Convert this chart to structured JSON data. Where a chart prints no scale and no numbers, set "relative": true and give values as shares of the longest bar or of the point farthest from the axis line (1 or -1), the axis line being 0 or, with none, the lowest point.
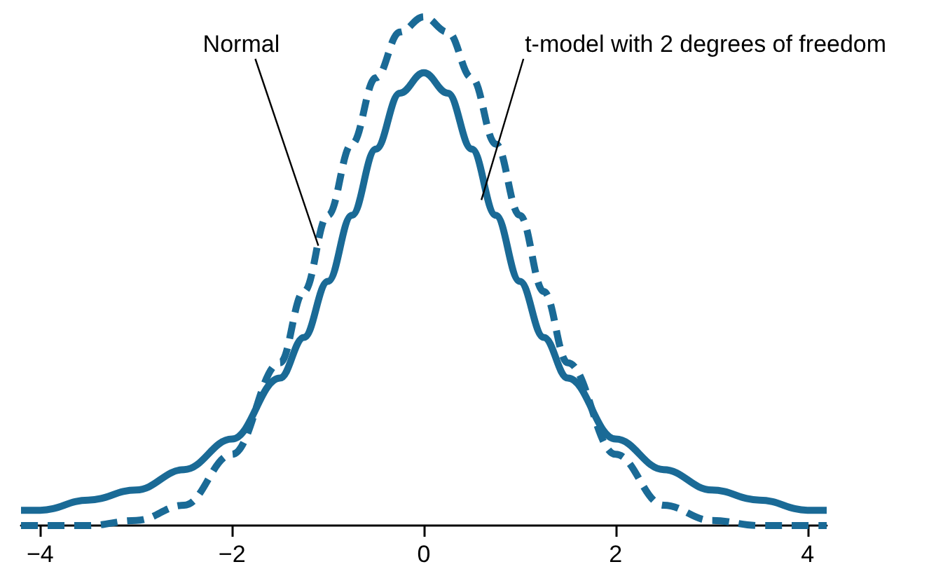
{
  "chart_data": {
    "type": "line",
    "relative": true,
    "x": [
      -4.2,
      -4,
      -3.5,
      -3,
      -2.5,
      -2,
      -1.5,
      -1.25,
      -1,
      -0.75,
      -0.5,
      -0.25,
      0,
      0.25,
      0.5,
      0.75,
      1,
      1.25,
      1.5,
      2,
      2.5,
      3,
      3.5,
      4,
      4.2
    ],
    "series": [
      {
        "color": "#1a6a96",
        "line_style": "dashed",
        "values": [
          0,
          0,
          0,
          0.01,
          0.04,
          0.14,
          0.32,
          0.46,
          0.61,
          0.75,
          0.88,
          0.97,
          1,
          0.97,
          0.88,
          0.75,
          0.61,
          0.46,
          0.32,
          0.14,
          0.04,
          0.01,
          0,
          0,
          0
        ]
      },
      {
        "color": "#1a6a96",
        "line_style": "solid",
        "values": [
          0.03,
          0.03,
          0.05,
          0.07,
          0.11,
          0.17,
          0.29,
          0.37,
          0.48,
          0.61,
          0.74,
          0.85,
          0.89,
          0.85,
          0.74,
          0.61,
          0.48,
          0.37,
          0.29,
          0.17,
          0.11,
          0.07,
          0.05,
          0.03,
          0.03
        ]
      }
    ],
    "xlim": [
      -4.2,
      4.2
    ],
    "xticks": [
      {
        "value": -4,
        "label": "−4"
      },
      {
        "value": -2,
        "label": "−2"
      },
      0,
      2,
      4
    ],
    "annotations": [
      {
        "text": "Normal",
        "x": -1.1,
        "y": 0.55
      },
      {
        "text": "t-model with 2 degrees of freedom",
        "x": 0.6,
        "y": 0.64
      }
    ],
    "marker": "none"
  }
}
